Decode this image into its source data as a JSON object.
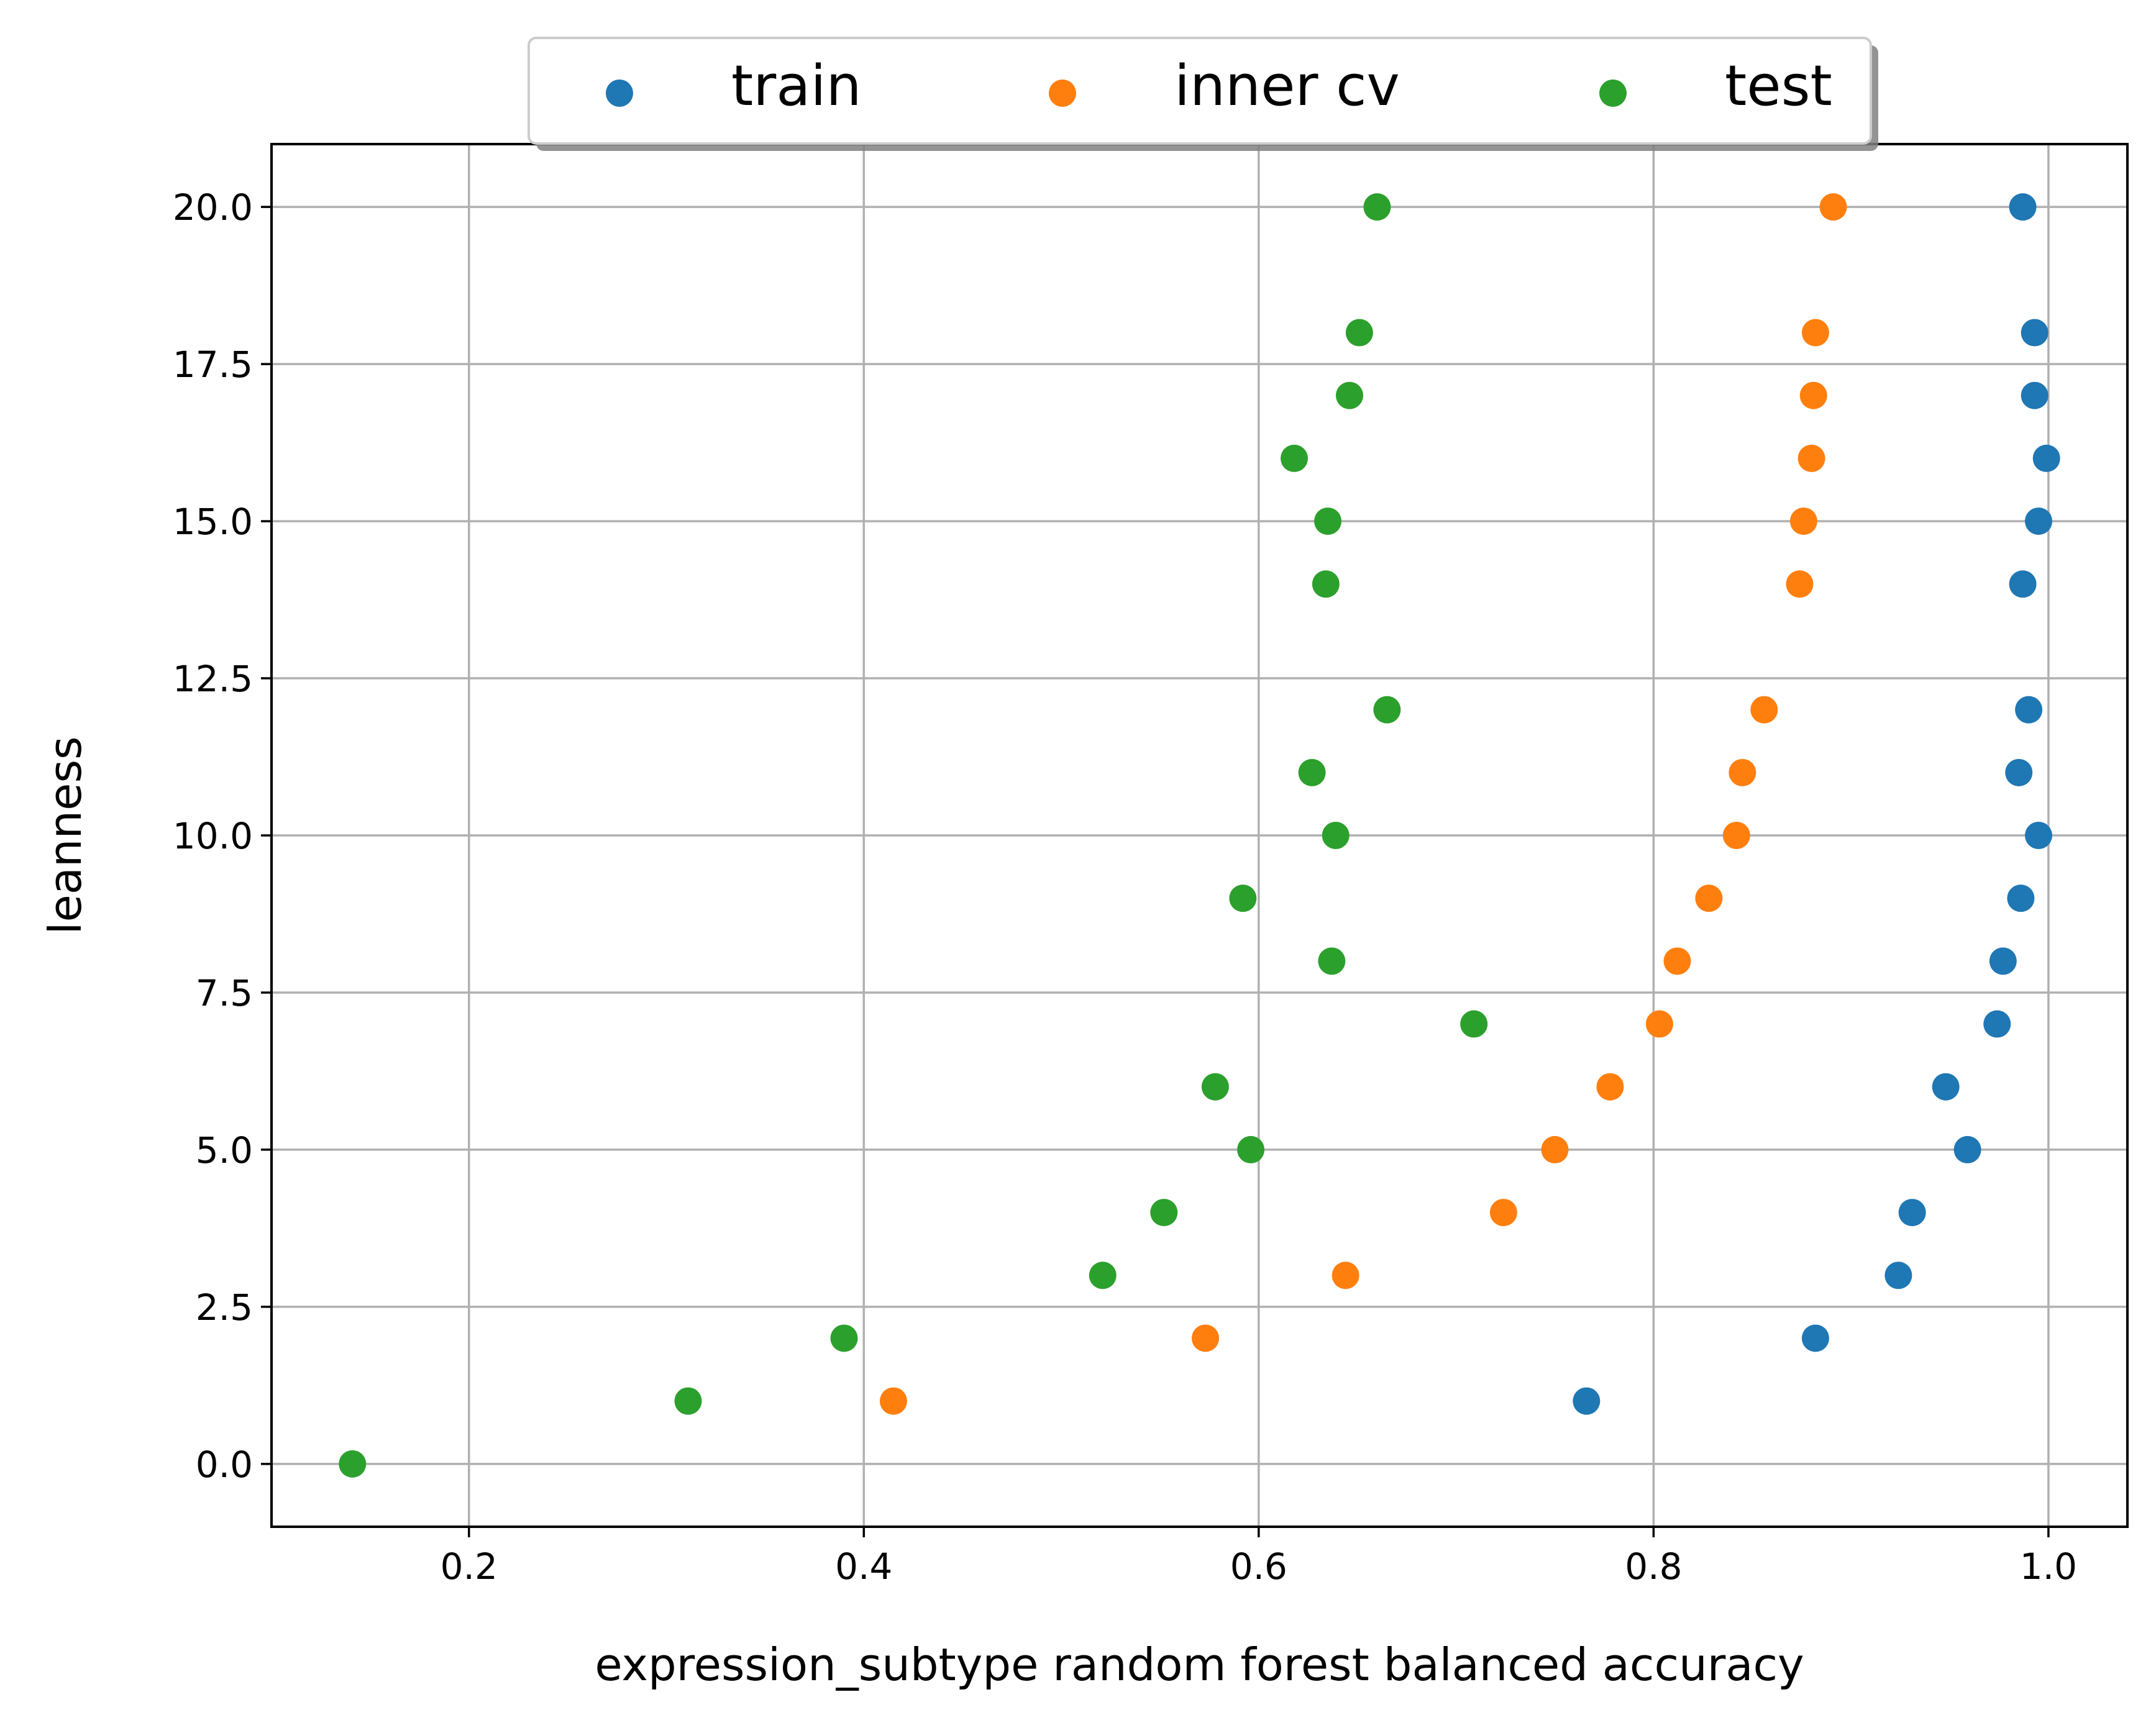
{
  "chart_data": {
    "type": "scatter",
    "title": "",
    "xlabel": "expression_subtype random forest balanced accuracy",
    "ylabel": "leanness",
    "xlim": [
      0.1,
      1.04
    ],
    "ylim": [
      -1.0,
      21.0
    ],
    "xticks": [
      0.2,
      0.4,
      0.6,
      0.8,
      1.0
    ],
    "xtick_labels": [
      "0.2",
      "0.4",
      "0.6",
      "0.8",
      "1.0"
    ],
    "yticks": [
      0,
      2.5,
      5,
      7.5,
      10,
      12.5,
      15,
      17.5,
      20
    ],
    "ytick_labels": [
      "0.0",
      "2.5",
      "5.0",
      "7.5",
      "10.0",
      "12.5",
      "15.0",
      "17.5",
      "20.0"
    ],
    "grid": true,
    "legend_position": "top-center",
    "series": [
      {
        "name": "train",
        "color": "#1f77b4",
        "points": [
          [
            0.766,
            1
          ],
          [
            0.882,
            2
          ],
          [
            0.924,
            3
          ],
          [
            0.931,
            4
          ],
          [
            0.959,
            5
          ],
          [
            0.948,
            6
          ],
          [
            0.974,
            7
          ],
          [
            0.977,
            8
          ],
          [
            0.986,
            9
          ],
          [
            0.995,
            10
          ],
          [
            0.985,
            11
          ],
          [
            0.99,
            12
          ],
          [
            0.987,
            14
          ],
          [
            0.995,
            15
          ],
          [
            0.999,
            16
          ],
          [
            0.993,
            17
          ],
          [
            0.993,
            18
          ],
          [
            0.987,
            20
          ]
        ]
      },
      {
        "name": "inner cv",
        "color": "#ff7f0e",
        "points": [
          [
            0.415,
            1
          ],
          [
            0.573,
            2
          ],
          [
            0.644,
            3
          ],
          [
            0.724,
            4
          ],
          [
            0.75,
            5
          ],
          [
            0.778,
            6
          ],
          [
            0.803,
            7
          ],
          [
            0.812,
            8
          ],
          [
            0.828,
            9
          ],
          [
            0.842,
            10
          ],
          [
            0.845,
            11
          ],
          [
            0.856,
            12
          ],
          [
            0.874,
            14
          ],
          [
            0.876,
            15
          ],
          [
            0.88,
            16
          ],
          [
            0.881,
            17
          ],
          [
            0.882,
            18
          ],
          [
            0.891,
            20
          ]
        ]
      },
      {
        "name": "test",
        "color": "#2ca02c",
        "points": [
          [
            0.141,
            0
          ],
          [
            0.311,
            1
          ],
          [
            0.39,
            2
          ],
          [
            0.521,
            3
          ],
          [
            0.552,
            4
          ],
          [
            0.596,
            5
          ],
          [
            0.578,
            6
          ],
          [
            0.709,
            7
          ],
          [
            0.637,
            8
          ],
          [
            0.592,
            9
          ],
          [
            0.639,
            10
          ],
          [
            0.627,
            11
          ],
          [
            0.665,
            12
          ],
          [
            0.634,
            14
          ],
          [
            0.635,
            15
          ],
          [
            0.618,
            16
          ],
          [
            0.646,
            17
          ],
          [
            0.651,
            18
          ],
          [
            0.66,
            20
          ]
        ]
      }
    ]
  }
}
